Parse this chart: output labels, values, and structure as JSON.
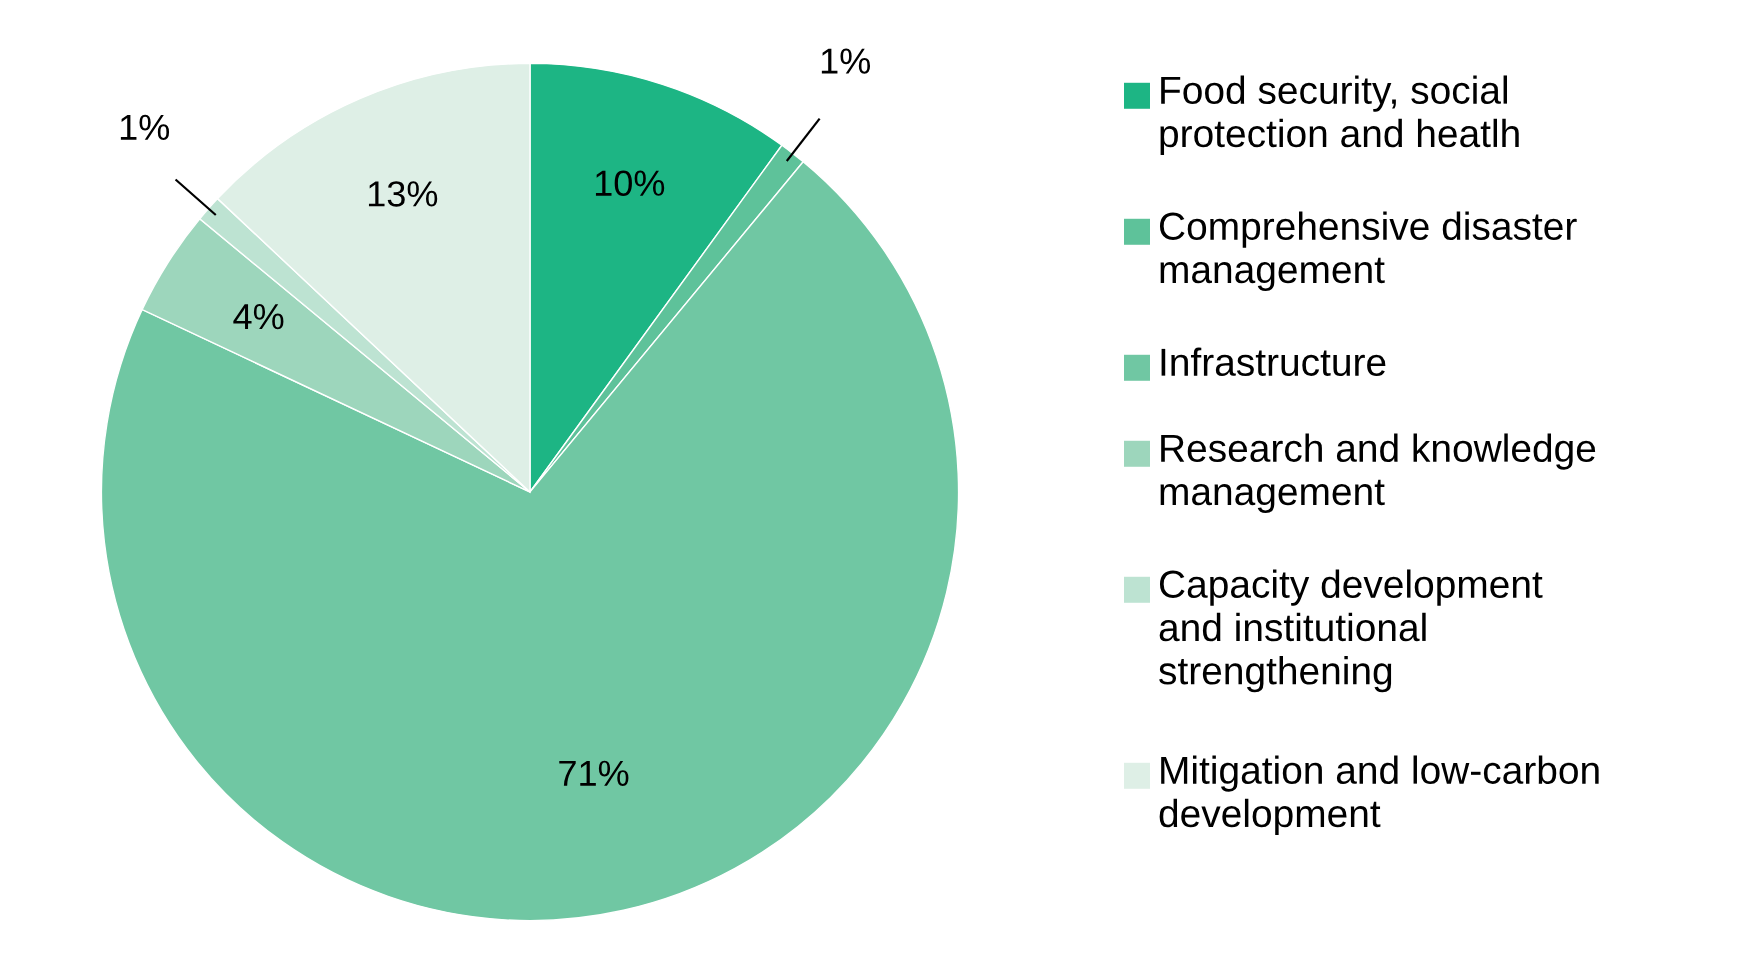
{
  "chart_data": {
    "type": "pie",
    "categories": [
      "Food security, social\nprotection and heatlh",
      "Comprehensive disaster\nmanagement",
      "Infrastructure",
      "Research and knowledge\nmanagement",
      "Capacity development\nand institutional\nstrengthening",
      "Mitigation and low-carbon\ndevelopment"
    ],
    "values": [
      10,
      1,
      71,
      4,
      1,
      13
    ],
    "value_labels": [
      "10%",
      "1%",
      "71%",
      "4%",
      "1%",
      "13%"
    ],
    "colors": [
      "#1db584",
      "#5ec29a",
      "#70c7a3",
      "#9dd6bc",
      "#bde3d2",
      "#deefe6"
    ],
    "legend": "right"
  }
}
